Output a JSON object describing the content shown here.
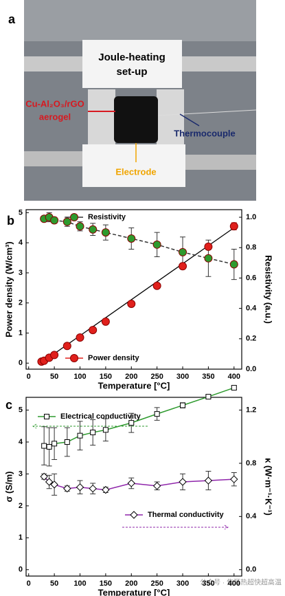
{
  "panel_labels": [
    "a",
    "b",
    "c"
  ],
  "photo": {
    "setup_label": [
      "Joule-heating",
      "set-up"
    ],
    "sample_label": [
      "Cu-Al₂O₃/rGO",
      "aerogel"
    ],
    "thermocouple_label": "Thermocouple",
    "electrode_label": "Electrode"
  },
  "watermark": "公众号 · 焦耳热超快超高温",
  "chart_data": [
    {
      "type": "line",
      "ylabel": "Power density (W/cm³)",
      "y2label": "Resistivity (a.u.)",
      "xlabel": "Temperature [°C]",
      "xlim": [
        -5,
        415
      ],
      "xticks": [
        0,
        50,
        100,
        150,
        200,
        250,
        300,
        350,
        400
      ],
      "ylim": [
        -0.2,
        5.1
      ],
      "yticks": [
        0,
        1,
        2,
        3,
        4,
        5
      ],
      "y2lim": [
        0,
        1.05
      ],
      "y2ticks": [
        {
          "value": 0,
          "label": "0.0"
        },
        {
          "value": 0.2,
          "label": "0.2"
        },
        {
          "value": 0.4,
          "label": "0.4"
        },
        {
          "value": 0.6,
          "label": "0.6"
        },
        {
          "value": 0.8,
          "label": "0.8"
        },
        {
          "value": 1,
          "label": "1.0"
        }
      ],
      "fit_line": {
        "x": [
          22,
          400
        ],
        "values": [
          -0.02,
          4.5
        ],
        "color": "#000000"
      },
      "series": [
        {
          "name": "Resistivity",
          "axis": "y2",
          "marker": "circle",
          "marker_fill": "#2e9a2e",
          "color": "#333333",
          "dashed": true,
          "x": [
            30,
            40,
            50,
            75,
            100,
            125,
            150,
            200,
            250,
            300,
            350,
            400
          ],
          "values": [
            0.99,
            1.0,
            0.98,
            0.97,
            0.94,
            0.92,
            0.9,
            0.86,
            0.82,
            0.77,
            0.73,
            0.69
          ],
          "errors": [
            0.01,
            0.03,
            0.02,
            0.03,
            0.03,
            0.04,
            0.05,
            0.07,
            0.08,
            0.1,
            0.12,
            0.1
          ]
        },
        {
          "name": "Power density",
          "axis": "y",
          "marker": "circle",
          "marker_fill": "#e0201c",
          "color": "#e0201c",
          "line": false,
          "x": [
            25,
            30,
            40,
            50,
            75,
            100,
            125,
            150,
            200,
            250,
            300,
            350,
            400
          ],
          "values": [
            0.05,
            0.08,
            0.18,
            0.27,
            0.57,
            0.85,
            1.1,
            1.38,
            1.97,
            2.57,
            3.22,
            3.87,
            4.55
          ],
          "errors": [
            0.02,
            0.03,
            0.04,
            0.04,
            0.05,
            0.06,
            0.06,
            0.08,
            0.06,
            0.06,
            0.1,
            0.1,
            0.12
          ]
        }
      ]
    },
    {
      "type": "line",
      "ylabel": "σ (S/m)",
      "y2label": "κ (W·m⁻¹·K⁻¹)",
      "xlabel": "Temperature [°C]",
      "xlim": [
        -5,
        415
      ],
      "xticks": [
        0,
        50,
        100,
        150,
        200,
        250,
        300,
        350,
        400
      ],
      "ylim": [
        -0.2,
        5.4
      ],
      "yticks": [
        0,
        1,
        2,
        3,
        4,
        5
      ],
      "y2lim": [
        -0.048,
        1.296
      ],
      "y2ticks": [
        {
          "value": 0,
          "label": "0.0"
        },
        {
          "value": 0.4,
          "label": "0.4"
        },
        {
          "value": 0.8,
          "label": "0.8"
        },
        {
          "value": 1.2,
          "label": "1.2"
        }
      ],
      "series": [
        {
          "name": "Electrical conductivity",
          "axis": "y",
          "marker": "square",
          "marker_fill": "#ffffff",
          "color": "#2e9a2e",
          "x": [
            30,
            40,
            50,
            75,
            100,
            125,
            150,
            200,
            250,
            300,
            350,
            400
          ],
          "values": [
            3.88,
            3.85,
            3.95,
            4.0,
            4.2,
            4.3,
            4.38,
            4.6,
            4.88,
            5.15,
            5.42,
            5.7
          ],
          "errors": [
            0.6,
            0.6,
            0.5,
            0.45,
            0.45,
            0.4,
            0.35,
            0.3,
            0.2,
            0.08,
            0.05,
            0.05
          ]
        },
        {
          "name": "Thermal conductivity",
          "axis": "y2",
          "marker": "diamond",
          "marker_fill": "#ffffff",
          "color": "#8e24aa",
          "x": [
            30,
            40,
            50,
            75,
            100,
            125,
            150,
            200,
            250,
            300,
            350,
            400
          ],
          "values": [
            0.7,
            0.66,
            0.64,
            0.61,
            0.62,
            0.61,
            0.6,
            0.65,
            0.63,
            0.66,
            0.67,
            0.68
          ],
          "errors": [
            0.02,
            0.05,
            0.08,
            0.02,
            0.05,
            0.04,
            0.02,
            0.04,
            0.03,
            0.06,
            0.07,
            0.05
          ]
        }
      ]
    }
  ]
}
